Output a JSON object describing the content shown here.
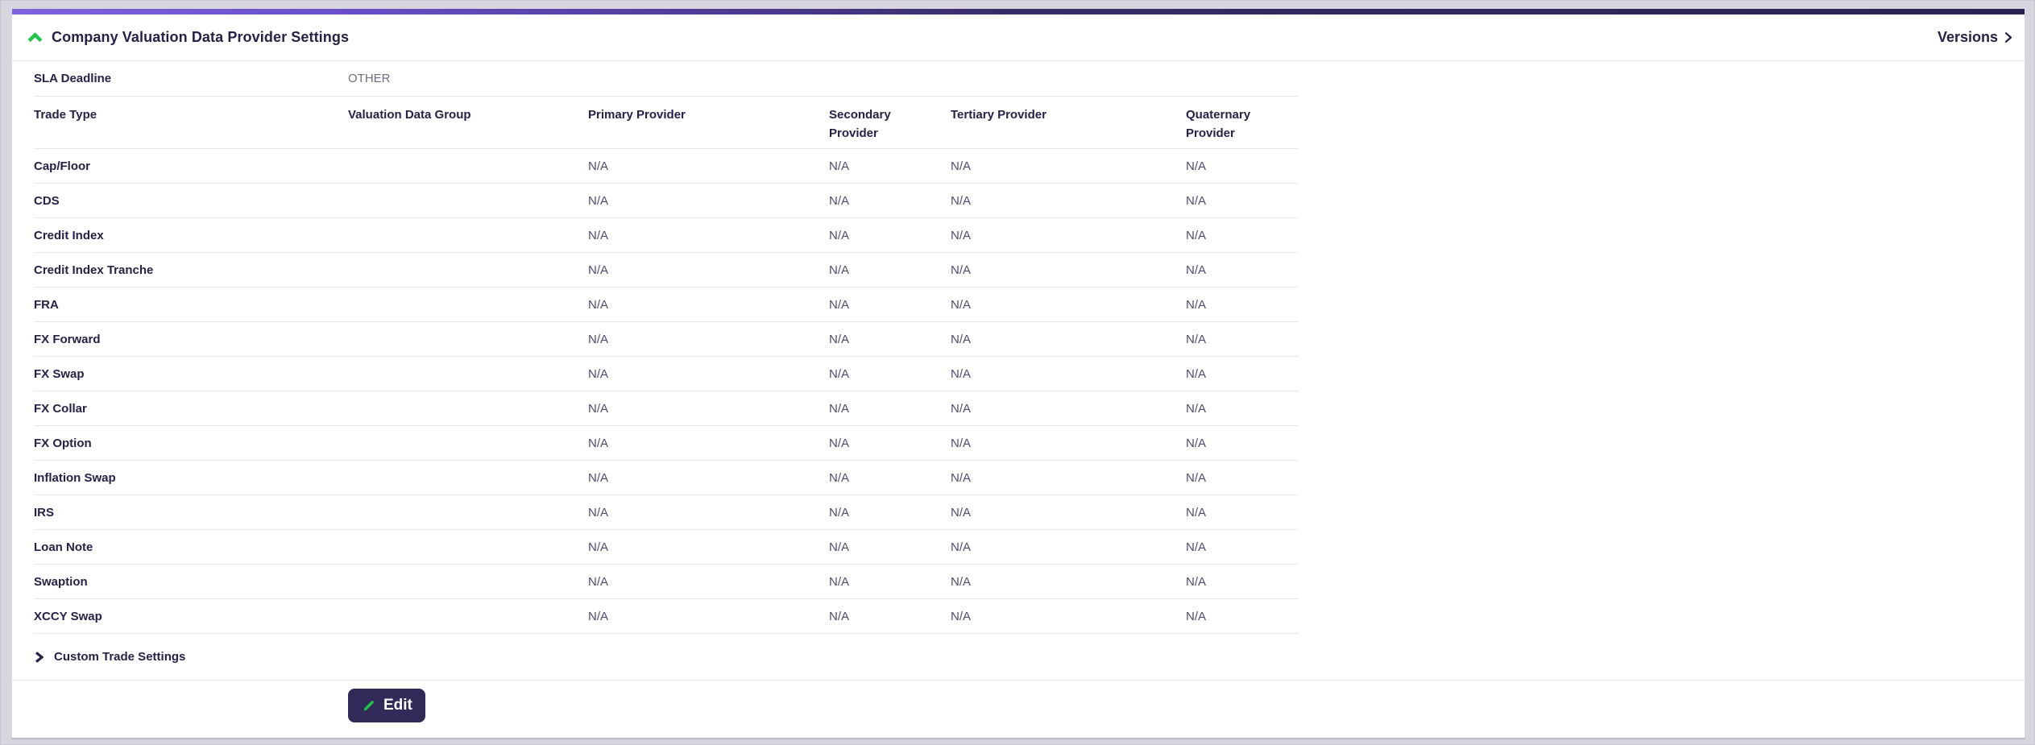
{
  "header": {
    "title": "Company Valuation Data Provider Settings",
    "versions_label": "Versions"
  },
  "sla": {
    "label": "SLA Deadline",
    "value": "OTHER"
  },
  "table": {
    "columns": [
      "Trade Type",
      "Valuation Data Group",
      "Primary Provider",
      "Secondary Provider",
      "Tertiary Provider",
      "Quaternary Provider"
    ],
    "rows": [
      {
        "trade_type": "Cap/Floor",
        "valuation_data_group": "",
        "primary": "N/A",
        "secondary": "N/A",
        "tertiary": "N/A",
        "quaternary": "N/A"
      },
      {
        "trade_type": "CDS",
        "valuation_data_group": "",
        "primary": "N/A",
        "secondary": "N/A",
        "tertiary": "N/A",
        "quaternary": "N/A"
      },
      {
        "trade_type": "Credit Index",
        "valuation_data_group": "",
        "primary": "N/A",
        "secondary": "N/A",
        "tertiary": "N/A",
        "quaternary": "N/A"
      },
      {
        "trade_type": "Credit Index Tranche",
        "valuation_data_group": "",
        "primary": "N/A",
        "secondary": "N/A",
        "tertiary": "N/A",
        "quaternary": "N/A"
      },
      {
        "trade_type": "FRA",
        "valuation_data_group": "",
        "primary": "N/A",
        "secondary": "N/A",
        "tertiary": "N/A",
        "quaternary": "N/A"
      },
      {
        "trade_type": "FX Forward",
        "valuation_data_group": "",
        "primary": "N/A",
        "secondary": "N/A",
        "tertiary": "N/A",
        "quaternary": "N/A"
      },
      {
        "trade_type": "FX Swap",
        "valuation_data_group": "",
        "primary": "N/A",
        "secondary": "N/A",
        "tertiary": "N/A",
        "quaternary": "N/A"
      },
      {
        "trade_type": "FX Collar",
        "valuation_data_group": "",
        "primary": "N/A",
        "secondary": "N/A",
        "tertiary": "N/A",
        "quaternary": "N/A"
      },
      {
        "trade_type": "FX Option",
        "valuation_data_group": "",
        "primary": "N/A",
        "secondary": "N/A",
        "tertiary": "N/A",
        "quaternary": "N/A"
      },
      {
        "trade_type": "Inflation Swap",
        "valuation_data_group": "",
        "primary": "N/A",
        "secondary": "N/A",
        "tertiary": "N/A",
        "quaternary": "N/A"
      },
      {
        "trade_type": "IRS",
        "valuation_data_group": "",
        "primary": "N/A",
        "secondary": "N/A",
        "tertiary": "N/A",
        "quaternary": "N/A"
      },
      {
        "trade_type": "Loan Note",
        "valuation_data_group": "",
        "primary": "N/A",
        "secondary": "N/A",
        "tertiary": "N/A",
        "quaternary": "N/A"
      },
      {
        "trade_type": "Swaption",
        "valuation_data_group": "",
        "primary": "N/A",
        "secondary": "N/A",
        "tertiary": "N/A",
        "quaternary": "N/A"
      },
      {
        "trade_type": "XCCY Swap",
        "valuation_data_group": "",
        "primary": "N/A",
        "secondary": "N/A",
        "tertiary": "N/A",
        "quaternary": "N/A"
      }
    ]
  },
  "custom_trade_settings": {
    "label": "Custom Trade Settings"
  },
  "edit_button": {
    "label": "Edit"
  },
  "icons": {
    "collapse": "chevron-up-icon",
    "versions": "chevron-right-icon",
    "custom_trade": "chevron-right-icon",
    "edit": "pencil-icon"
  },
  "colors": {
    "accent_green": "#1ec846",
    "accent_gradient_start": "#7f62de",
    "accent_gradient_end": "#2c2251",
    "edit_button_background": "#322b5a",
    "text_primary": "#262148",
    "text_muted": "#6e6b84",
    "text_na": "#4f4b6c",
    "divider": "#e8e8f0",
    "page_background": "#d7d6de",
    "card_background": "#ffffff"
  }
}
